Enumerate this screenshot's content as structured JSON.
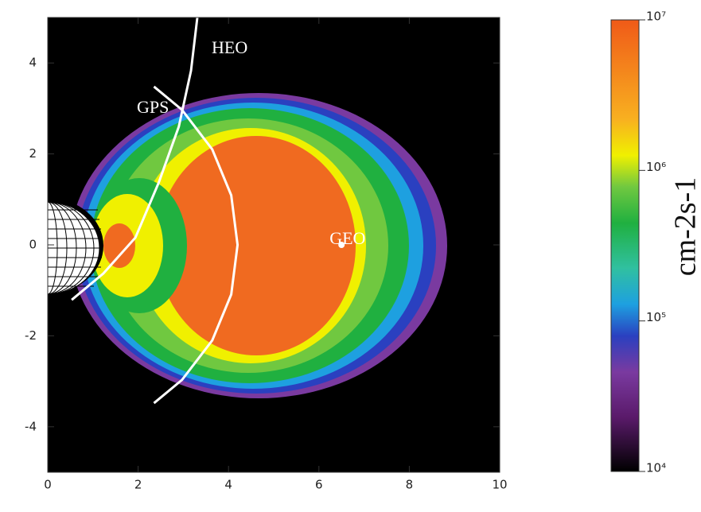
{
  "chart_data": {
    "type": "line",
    "xlim": [
      0,
      10
    ],
    "ylim": [
      -5,
      5
    ],
    "xticks": [
      0,
      2,
      4,
      6,
      8,
      10
    ],
    "yticks": [
      -4,
      -2,
      0,
      2,
      4
    ],
    "series": [
      {
        "name": "HEO",
        "color": "#ffffff",
        "x": [
          0.53,
          1.23,
          1.94,
          2.46,
          2.9,
          3.17,
          3.31
        ],
        "y": [
          -1.21,
          -0.63,
          0.16,
          1.38,
          2.6,
          3.83,
          5.0
        ]
      },
      {
        "name": "GPS",
        "color": "#ffffff",
        "x": [
          2.35,
          2.97,
          3.64,
          4.06,
          4.2,
          4.06,
          3.64,
          2.97,
          2.35
        ],
        "y": [
          3.48,
          2.97,
          2.1,
          1.09,
          0,
          -1.09,
          -2.1,
          -2.97,
          -3.48
        ]
      }
    ],
    "points": [
      {
        "name": "GEO",
        "x": 6.5,
        "y": 0,
        "color": "#ffffff"
      }
    ],
    "colorbar": {
      "label": "cm-2s-1",
      "log": true,
      "lim": [
        10000,
        10000000
      ],
      "ticks": [
        {
          "value": 10000,
          "label": "10⁴"
        },
        {
          "value": 100000,
          "label": "10⁵"
        },
        {
          "value": 1000000,
          "label": "10⁶"
        },
        {
          "value": 10000000,
          "label": "10⁷"
        }
      ]
    }
  }
}
